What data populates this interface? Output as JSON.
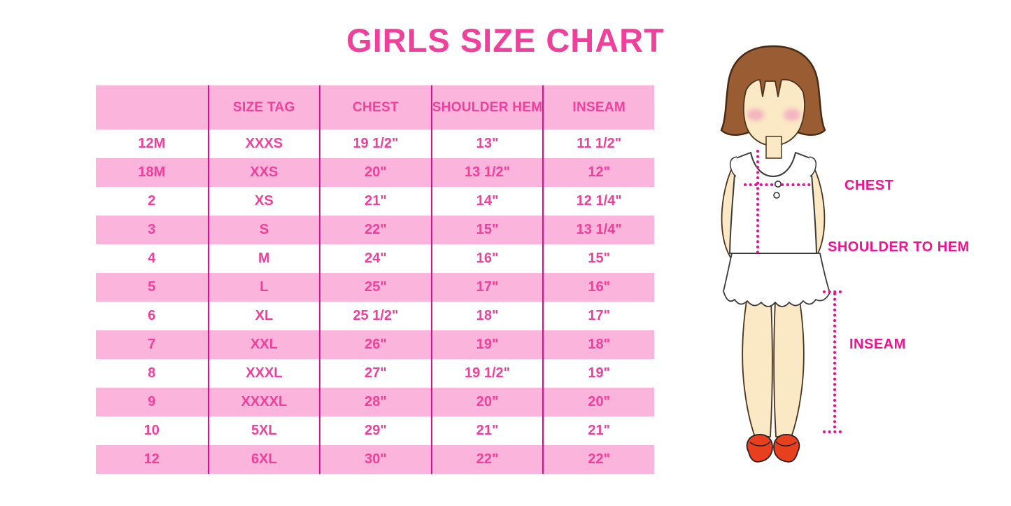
{
  "title": "GIRLS SIZE CHART",
  "figure": {
    "chest_label": "CHEST",
    "shoulder_to_hem_label": "SHOULDER TO HEM",
    "inseam_label": "INSEAM"
  },
  "colors": {
    "title_and_table_text": "#F0409B",
    "row_pink": "#FBB4DB",
    "column_line_magenta": "#E20B8A",
    "figure_label_magenta": "#F2128F",
    "dotted_line_magenta": "#EE0C8C",
    "hair_brown": "#9A5C33",
    "skin": "#FBE8C5",
    "shoe_red": "#E8401F"
  },
  "chart_data": {
    "type": "table",
    "title": "GIRLS SIZE CHART",
    "columns": [
      "",
      "SIZE TAG",
      "CHEST",
      "SHOULDER HEM",
      "INSEAM"
    ],
    "rows": [
      [
        "12M",
        "XXXS",
        "19 1/2\"",
        "13\"",
        "11 1/2\""
      ],
      [
        "18M",
        "XXS",
        "20\"",
        "13 1/2\"",
        "12\""
      ],
      [
        "2",
        "XS",
        "21\"",
        "14\"",
        "12 1/4\""
      ],
      [
        "3",
        "S",
        "22\"",
        "15\"",
        "13 1/4\""
      ],
      [
        "4",
        "M",
        "24\"",
        "16\"",
        "15\""
      ],
      [
        "5",
        "L",
        "25\"",
        "17\"",
        "16\""
      ],
      [
        "6",
        "XL",
        "25 1/2\"",
        "18\"",
        "17\""
      ],
      [
        "7",
        "XXL",
        "26\"",
        "19\"",
        "18\""
      ],
      [
        "8",
        "XXXL",
        "27\"",
        "19 1/2\"",
        "19\""
      ],
      [
        "9",
        "XXXXL",
        "28\"",
        "20\"",
        "20\""
      ],
      [
        "10",
        "5XL",
        "29\"",
        "21\"",
        "21\""
      ],
      [
        "12",
        "6XL",
        "30\"",
        "22\"",
        "22\""
      ]
    ],
    "row_striping": "header pink, then alternating white/pink starting with white",
    "notes": "All measurement values are inches; no outer table border, magenta vertical column separators only"
  }
}
